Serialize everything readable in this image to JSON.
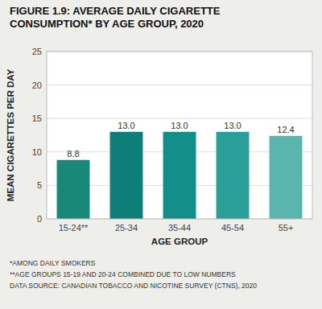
{
  "chart_data": {
    "type": "bar",
    "title": [
      "FIGURE 1.9: AVERAGE DAILY CIGARETTE",
      "CONSUMPTION* BY AGE GROUP, 2020"
    ],
    "categories": [
      "15-24**",
      "25-34",
      "35-44",
      "45-54",
      "55+"
    ],
    "values": [
      8.8,
      13.0,
      13.0,
      13.0,
      12.4
    ],
    "value_labels": [
      "8.8",
      "13.0",
      "13.0",
      "13.0",
      "12.4"
    ],
    "colors": [
      "#1a8878",
      "#0e7e78",
      "#138e88",
      "#2a9e98",
      "#5ab5af"
    ],
    "xlabel": "AGE GROUP",
    "ylabel": "MEAN CIGARETTES PER DAY",
    "ylim": [
      0,
      25
    ],
    "yticks": [
      0,
      5,
      10,
      15,
      20,
      25
    ],
    "grid": true,
    "data_labels": true,
    "annotations": [
      "*AMONG DAILY SMOKERS",
      "**AGE GROUPS 15-19 AND 20-24 COMBINED DUE TO LOW NUMBERS",
      "DATA SOURCE: CANADIAN TOBACCO AND NICOTINE SURVEY (CTNS), 2020"
    ]
  }
}
